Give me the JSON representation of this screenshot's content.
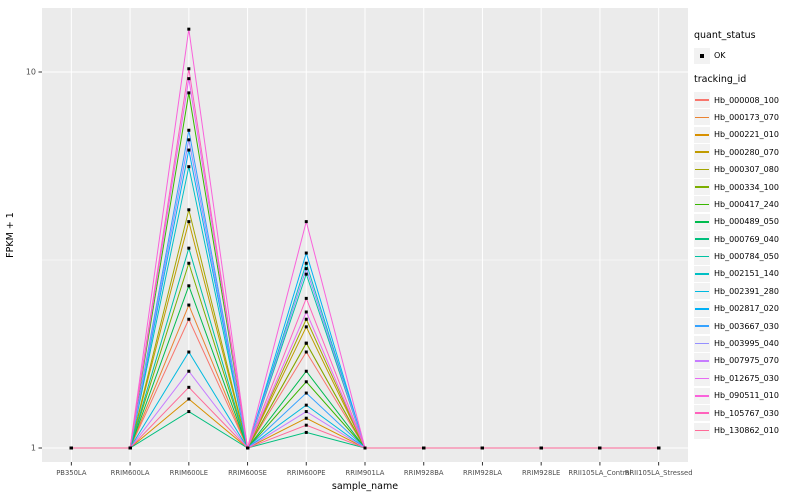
{
  "chart_data": {
    "type": "line",
    "title": "",
    "xlabel": "sample_name",
    "ylabel": "FPKM + 1",
    "yscale": "log10",
    "ylim": [
      1,
      15
    ],
    "grid": true,
    "panel_bg": "#EBEBEB",
    "grid_color": "#FFFFFF",
    "point_color": "#000000",
    "yticks": [
      {
        "label": "1",
        "value": 1
      },
      {
        "label": "10",
        "value": 10
      }
    ],
    "minor_yticks": [
      3.1623
    ],
    "categories": [
      "PB350LA",
      "RRIM600LA",
      "RRIM600LE",
      "RRIM600SE",
      "RRIM600PE",
      "RRIM901LA",
      "RRIM928BA",
      "RRIM928LA",
      "RRIM928LE",
      "RRII105LA_Control",
      "RRII105LA_Stressed"
    ],
    "series": [
      {
        "name": "Hb_000008_100",
        "color": "#F8766D",
        "values": [
          1,
          1,
          2.2,
          1,
          1.8,
          1,
          1,
          1,
          1,
          1,
          1
        ]
      },
      {
        "name": "Hb_000173_070",
        "color": "#EA8331",
        "values": [
          1,
          1,
          2.4,
          1,
          1.9,
          1,
          1,
          1,
          1,
          1,
          1
        ]
      },
      {
        "name": "Hb_000221_010",
        "color": "#D89000",
        "values": [
          1,
          1,
          1.35,
          1,
          1.2,
          1,
          1,
          1,
          1,
          1,
          1
        ]
      },
      {
        "name": "Hb_000280_070",
        "color": "#C09B00",
        "values": [
          1,
          1,
          4.0,
          1,
          2.1,
          1,
          1,
          1,
          1,
          1,
          1
        ]
      },
      {
        "name": "Hb_000307_080",
        "color": "#A3A500",
        "values": [
          1,
          1,
          4.3,
          1,
          2.2,
          1,
          1,
          1,
          1,
          1,
          1
        ]
      },
      {
        "name": "Hb_000334_100",
        "color": "#7CAE00",
        "values": [
          1,
          1,
          3.1,
          1,
          1.9,
          1,
          1,
          1,
          1,
          1,
          1
        ]
      },
      {
        "name": "Hb_000417_240",
        "color": "#39B600",
        "values": [
          1,
          1,
          8.8,
          1,
          1.5,
          1,
          1,
          1,
          1,
          1,
          1
        ]
      },
      {
        "name": "Hb_000489_050",
        "color": "#00BB4E",
        "values": [
          1,
          1,
          2.7,
          1,
          1.6,
          1,
          1,
          1,
          1,
          1,
          1
        ]
      },
      {
        "name": "Hb_000769_040",
        "color": "#00BF7D",
        "values": [
          1,
          1,
          1.25,
          1,
          1.1,
          1,
          1,
          1,
          1,
          1,
          1
        ]
      },
      {
        "name": "Hb_000784_050",
        "color": "#00C1A3",
        "values": [
          1,
          1,
          3.4,
          1,
          2.9,
          1,
          1,
          1,
          1,
          1,
          1
        ]
      },
      {
        "name": "Hb_002151_140",
        "color": "#00BFC4",
        "values": [
          1,
          1,
          5.6,
          1,
          3.1,
          1,
          1,
          1,
          1,
          1,
          1
        ]
      },
      {
        "name": "Hb_002391_280",
        "color": "#00BAE0",
        "values": [
          1,
          1,
          1.8,
          1,
          1.3,
          1,
          1,
          1,
          1,
          1,
          1
        ]
      },
      {
        "name": "Hb_002817_020",
        "color": "#00B0F6",
        "values": [
          1,
          1,
          6.2,
          1,
          3.3,
          1,
          1,
          1,
          1,
          1,
          1
        ]
      },
      {
        "name": "Hb_003667_030",
        "color": "#35A2FF",
        "values": [
          1,
          1,
          7.0,
          1,
          1.4,
          1,
          1,
          1,
          1,
          1,
          1
        ]
      },
      {
        "name": "Hb_003995_040",
        "color": "#9590FF",
        "values": [
          1,
          1,
          6.6,
          1,
          3.0,
          1,
          1,
          1,
          1,
          1,
          1
        ]
      },
      {
        "name": "Hb_007975_070",
        "color": "#C77CFF",
        "values": [
          1,
          1,
          1.6,
          1,
          1.25,
          1,
          1,
          1,
          1,
          1,
          1
        ]
      },
      {
        "name": "Hb_012675_030",
        "color": "#E76BF3",
        "values": [
          1,
          1,
          9.6,
          1,
          2.3,
          1,
          1,
          1,
          1,
          1,
          1
        ]
      },
      {
        "name": "Hb_090511_010",
        "color": "#FA62DB",
        "values": [
          1,
          1,
          13.0,
          1,
          4.0,
          1,
          1,
          1,
          1,
          1,
          1
        ]
      },
      {
        "name": "Hb_105767_030",
        "color": "#FF62BC",
        "values": [
          1,
          1,
          10.2,
          1,
          2.5,
          1,
          1,
          1,
          1,
          1,
          1
        ]
      },
      {
        "name": "Hb_130862_010",
        "color": "#FF6A98",
        "values": [
          1,
          1,
          1.45,
          1,
          1.15,
          1,
          1,
          1,
          1,
          1,
          1
        ]
      }
    ],
    "legend": {
      "quant_status_title": "quant_status",
      "quant_status_items": [
        {
          "label": "OK"
        }
      ],
      "tracking_id_title": "tracking_id",
      "key_bg": "#F2F2F2",
      "position": "right"
    }
  }
}
